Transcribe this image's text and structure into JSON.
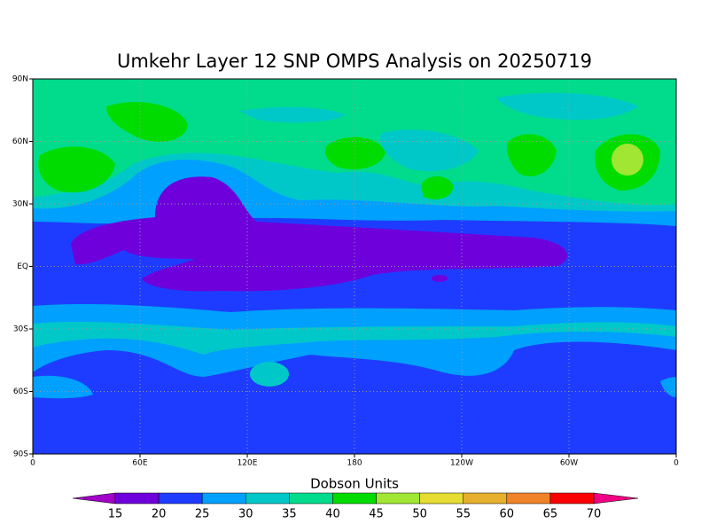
{
  "title": "Umkehr Layer 12 SNP OMPS Analysis on 20250719",
  "map": {
    "xlim": [
      0,
      360
    ],
    "ylim": [
      -90,
      90
    ],
    "xticks": [
      0,
      {
        "value": 60,
        "label": "60E"
      },
      {
        "value": 120,
        "label": "120E"
      },
      180,
      {
        "value": 240,
        "label": "120W"
      },
      {
        "value": 300,
        "label": "60W"
      },
      {
        "value": 360,
        "label": "0"
      }
    ],
    "yticks": [
      {
        "value": -90,
        "label": "90S"
      },
      {
        "value": -60,
        "label": "60S"
      },
      {
        "value": -30,
        "label": "30S"
      },
      {
        "value": 0,
        "label": "EQ"
      },
      {
        "value": 30,
        "label": "30N"
      },
      {
        "value": 60,
        "label": "60N"
      },
      {
        "value": 90,
        "label": "90N"
      }
    ],
    "grid": true
  },
  "colorbar": {
    "label": "Dobson Units",
    "levels": [
      15,
      20,
      25,
      30,
      35,
      40,
      45,
      50,
      55,
      60,
      65,
      70
    ],
    "colors": [
      "#a000c8",
      "#6e00dc",
      "#1e3cff",
      "#00a0ff",
      "#00c8c8",
      "#00dc8c",
      "#00dc00",
      "#a0e632",
      "#e6dc32",
      "#e6af2d",
      "#f08228",
      "#fa0000",
      "#f00082"
    ]
  }
}
